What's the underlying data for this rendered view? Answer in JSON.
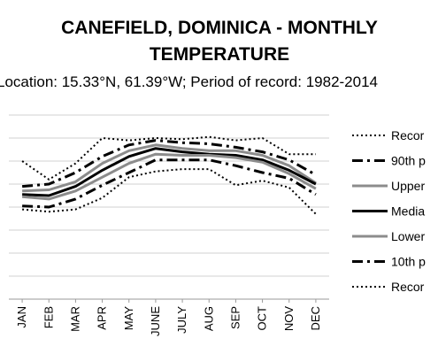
{
  "chart_data": {
    "type": "line",
    "title_lines": [
      "CANEFIELD, DOMINICA - MONTHLY",
      "TEMPERATURE"
    ],
    "subtitle": "Location: 15.33°N, 61.39°W; Period of record: 1982-2014",
    "categories": [
      "JAN",
      "FEB",
      "MAR",
      "APR",
      "MAY",
      "JUNE",
      "JULY",
      "AUG",
      "SEP",
      "OCT",
      "NOV",
      "DEC"
    ],
    "ylim": [
      0,
      8
    ],
    "grid": true,
    "legend_position": "right",
    "series": [
      {
        "name": "Recor",
        "style": "dotted",
        "color": "#000000",
        "width": 2,
        "values": [
          6.0,
          5.2,
          5.9,
          7.0,
          6.9,
          7.0,
          6.95,
          7.05,
          6.9,
          7.0,
          6.3,
          6.3
        ]
      },
      {
        "name": "90th p",
        "style": "dashdot",
        "color": "#000000",
        "width": 3,
        "values": [
          4.9,
          5.0,
          5.5,
          6.2,
          6.7,
          6.9,
          6.8,
          6.75,
          6.6,
          6.4,
          6.05,
          5.4
        ]
      },
      {
        "name": "Upper",
        "style": "solid",
        "color": "#8c8c8c",
        "width": 3,
        "values": [
          4.7,
          4.75,
          5.1,
          5.9,
          6.45,
          6.7,
          6.55,
          6.45,
          6.45,
          6.25,
          5.8,
          5.05
        ]
      },
      {
        "name": "Media",
        "style": "solid",
        "color": "#000000",
        "width": 3,
        "values": [
          4.55,
          4.5,
          4.9,
          5.6,
          6.2,
          6.55,
          6.4,
          6.3,
          6.25,
          6.05,
          5.6,
          5.0
        ]
      },
      {
        "name": "Lower",
        "style": "solid",
        "color": "#8c8c8c",
        "width": 3,
        "values": [
          4.45,
          4.35,
          4.7,
          5.3,
          5.9,
          6.3,
          6.25,
          6.25,
          6.15,
          5.95,
          5.45,
          4.8
        ]
      },
      {
        "name": "10th p",
        "style": "dashdot",
        "color": "#000000",
        "width": 3,
        "values": [
          4.05,
          4.0,
          4.35,
          4.95,
          5.5,
          6.05,
          6.05,
          6.05,
          5.8,
          5.5,
          5.25,
          4.55
        ]
      },
      {
        "name": "Recor",
        "style": "dotted",
        "color": "#000000",
        "width": 2,
        "values": [
          3.9,
          3.8,
          3.9,
          4.4,
          5.3,
          5.55,
          5.65,
          5.65,
          4.95,
          5.15,
          4.85,
          3.7
        ]
      }
    ]
  }
}
